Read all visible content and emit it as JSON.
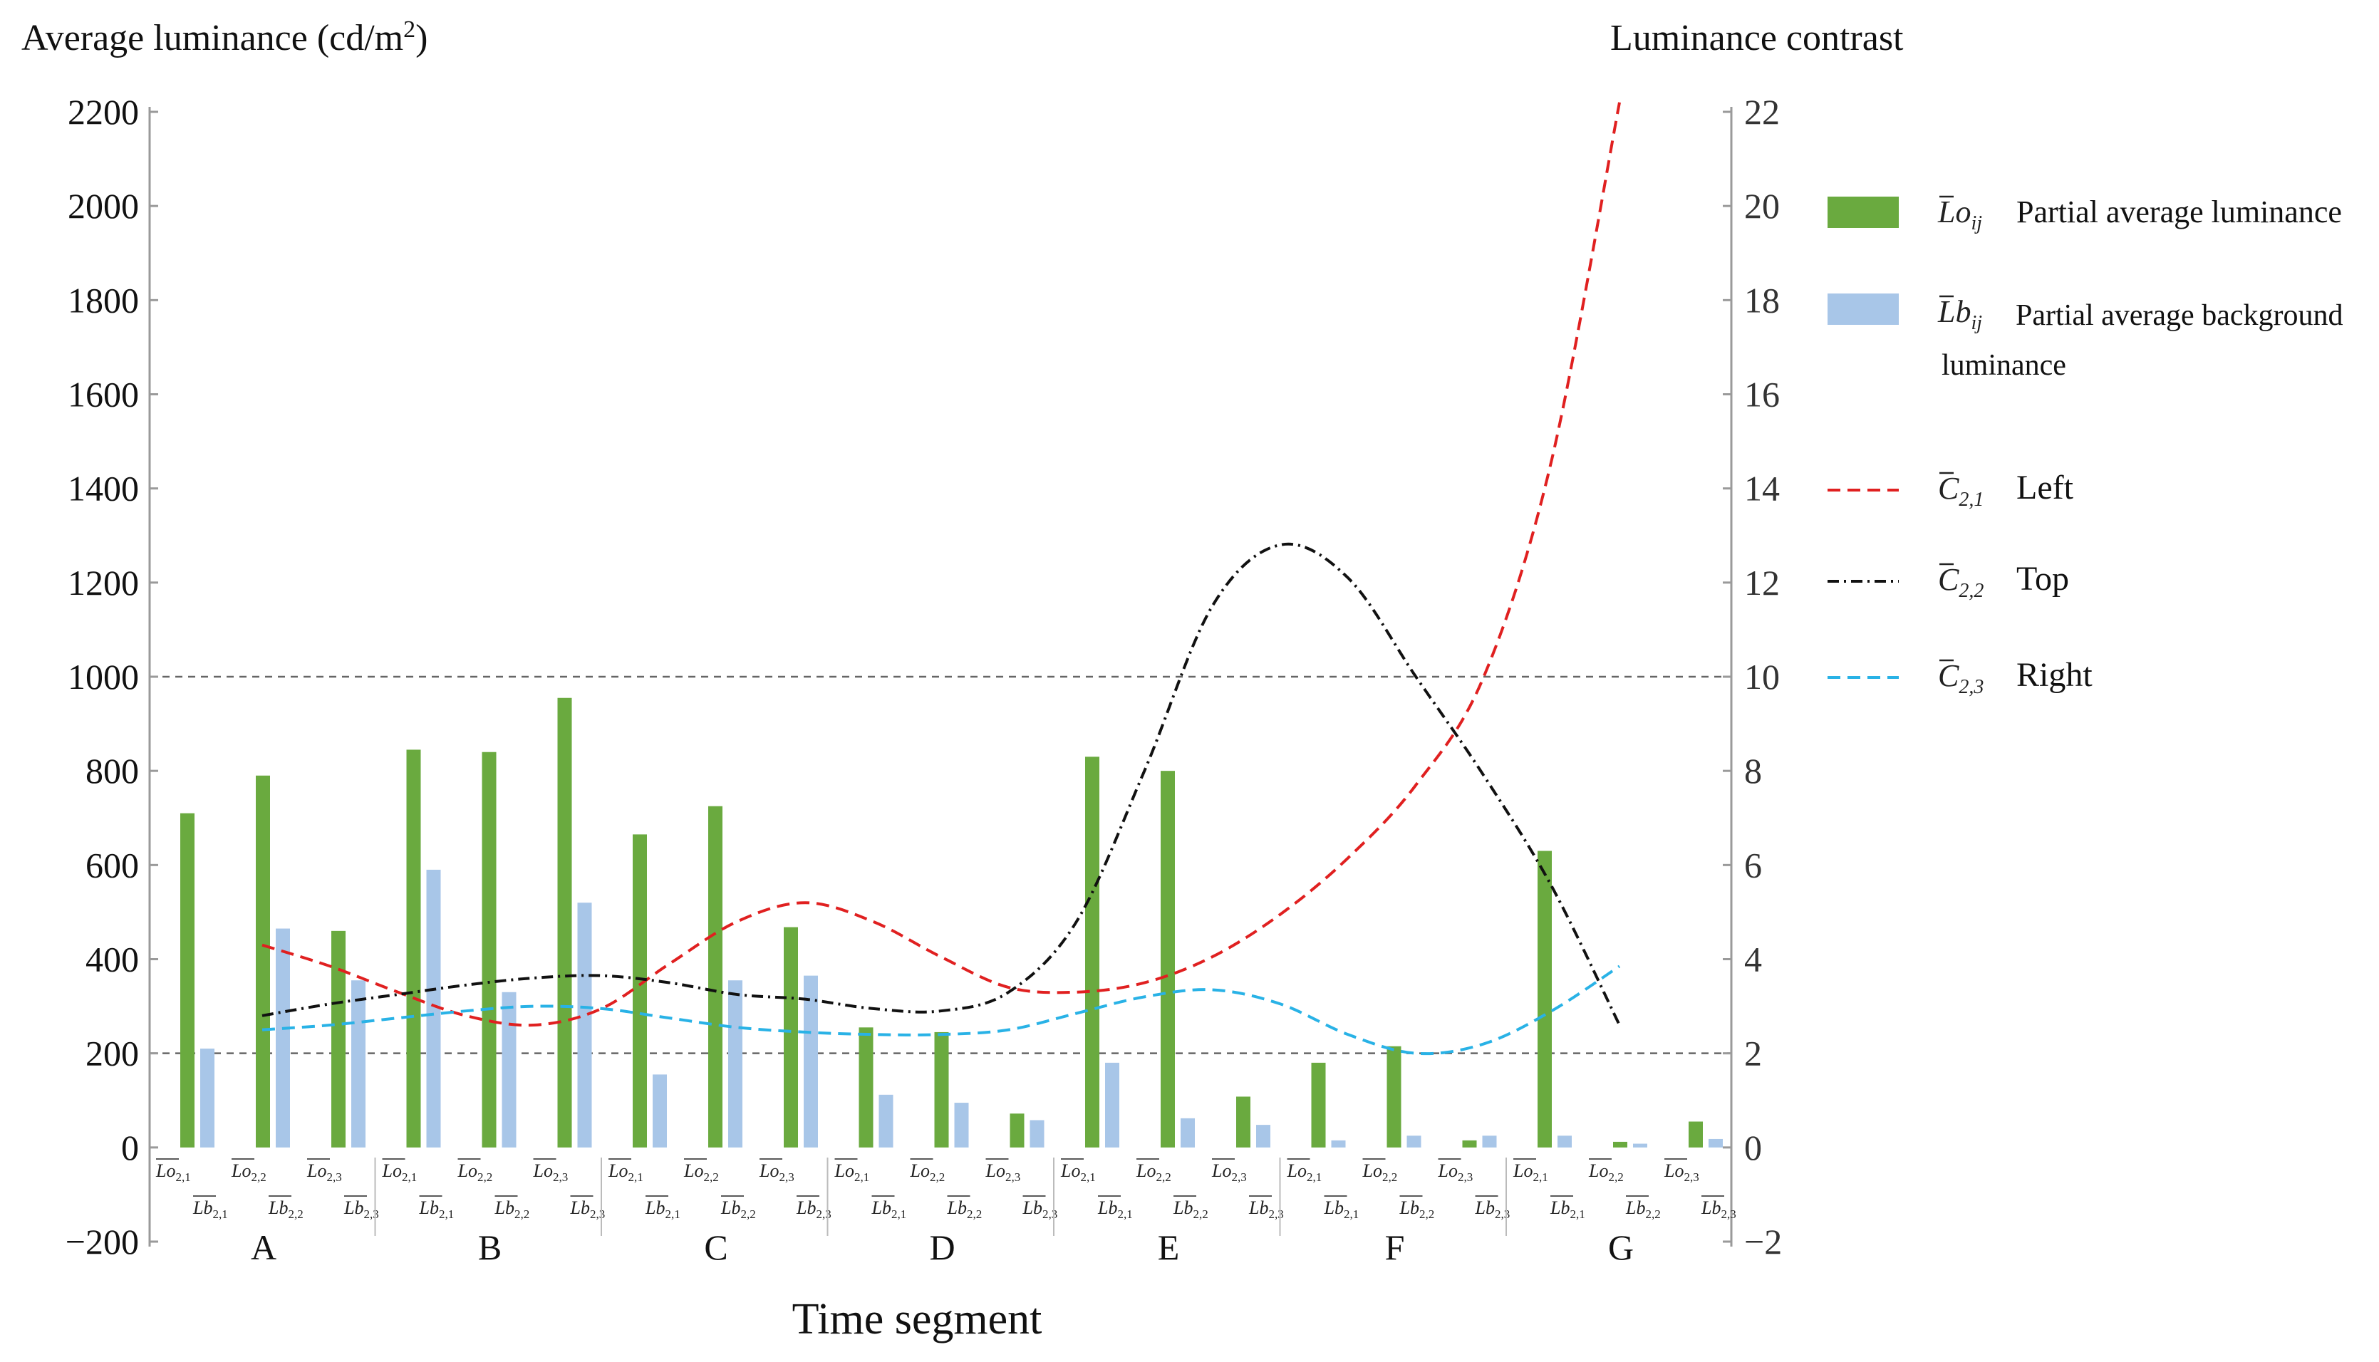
{
  "chart_data": {
    "type": "bar+line",
    "title": "",
    "left_axis_title_prefix": "Average luminance (cd/m",
    "left_axis_title_sup": "2",
    "left_axis_title_suffix": ")",
    "right_axis_title": "Luminance contrast",
    "xlabel": "Time segment",
    "left_ylim": [
      -200,
      2200
    ],
    "right_ylim": [
      -2,
      22
    ],
    "left_ticks": [
      "2200",
      "2000",
      "1800",
      "1600",
      "1400",
      "1200",
      "1000",
      "800",
      "600",
      "400",
      "200",
      "0",
      "−200"
    ],
    "left_tick_values": [
      2200,
      2000,
      1800,
      1600,
      1400,
      1200,
      1000,
      800,
      600,
      400,
      200,
      0,
      -200
    ],
    "right_ticks": [
      "22",
      "20",
      "18",
      "16",
      "14",
      "12",
      "10",
      "8",
      "6",
      "4",
      "2",
      "0",
      "−2"
    ],
    "right_tick_values": [
      22,
      20,
      18,
      16,
      14,
      12,
      10,
      8,
      6,
      4,
      2,
      0,
      -2
    ],
    "reference_lines_contrast": [
      10,
      2
    ],
    "segments": [
      "A",
      "B",
      "C",
      "D",
      "E",
      "F",
      "G"
    ],
    "pair_labels_top": [
      "Lo2,1",
      "Lo2,2",
      "Lo2,3"
    ],
    "pair_labels_bottom": [
      "Lb2,1",
      "Lb2,2",
      "Lb2,3"
    ],
    "label_main_top": "Lo",
    "label_main_bottom": "Lb",
    "label_subs": [
      "2,1",
      "2,2",
      "2,3"
    ],
    "bar_series": [
      {
        "name": "Partial average luminance",
        "symbol": "Lo",
        "symbol_sub": "ij",
        "color": "#6aaa3f",
        "values": [
          [
            710,
            790,
            460
          ],
          [
            845,
            840,
            955
          ],
          [
            665,
            725,
            468
          ],
          [
            255,
            245,
            72
          ],
          [
            830,
            800,
            108
          ],
          [
            180,
            215,
            15
          ],
          [
            630,
            12,
            55
          ]
        ]
      },
      {
        "name": "Partial average background luminance",
        "symbol": "Lb",
        "symbol_sub": "ij",
        "color": "#a8c6e8",
        "values": [
          [
            210,
            465,
            355
          ],
          [
            590,
            330,
            520
          ],
          [
            155,
            355,
            365
          ],
          [
            112,
            95,
            58
          ],
          [
            180,
            62,
            48
          ],
          [
            15,
            25,
            25
          ],
          [
            25,
            8,
            18
          ]
        ]
      }
    ],
    "line_series": [
      {
        "name": "Left",
        "symbol": "C",
        "symbol_sub": "2,1",
        "color": "#e02020",
        "dash": "dash",
        "x": [
          0,
          0.3,
          0.6,
          0.9,
          1.2,
          1.5,
          1.8,
          2.1,
          2.4,
          2.7,
          3.0,
          3.3,
          3.6,
          3.9,
          4.2,
          4.5,
          4.8,
          5.1,
          5.4,
          5.7,
          6.0
        ],
        "values": [
          4.3,
          3.85,
          3.3,
          2.8,
          2.6,
          2.95,
          3.9,
          4.8,
          5.2,
          4.8,
          4.05,
          3.4,
          3.3,
          3.5,
          4.05,
          4.95,
          6.15,
          7.7,
          10.0,
          14.6,
          22.2
        ]
      },
      {
        "name": "Top",
        "symbol": "C",
        "symbol_sub": "2,2",
        "color": "#111111",
        "dash": "dashdot",
        "x": [
          0,
          0.3,
          0.6,
          0.9,
          1.2,
          1.5,
          1.8,
          2.1,
          2.4,
          2.7,
          3.0,
          3.3,
          3.6,
          3.9,
          4.2,
          4.5,
          4.8,
          5.1,
          5.4,
          5.7,
          6.0
        ],
        "values": [
          2.8,
          3.05,
          3.25,
          3.45,
          3.6,
          3.65,
          3.5,
          3.25,
          3.15,
          2.95,
          2.9,
          3.3,
          4.8,
          8.0,
          11.5,
          12.8,
          12.1,
          10.0,
          7.9,
          5.55,
          2.6
        ]
      },
      {
        "name": "Right",
        "symbol": "C",
        "symbol_sub": "2,3",
        "color": "#29b2e6",
        "dash": "dash",
        "x": [
          0,
          0.3,
          0.6,
          0.9,
          1.2,
          1.5,
          1.8,
          2.1,
          2.4,
          2.7,
          3.0,
          3.3,
          3.6,
          3.9,
          4.2,
          4.5,
          4.8,
          5.1,
          5.4,
          5.7,
          6.0
        ],
        "values": [
          2.5,
          2.6,
          2.75,
          2.9,
          3.0,
          2.95,
          2.75,
          2.55,
          2.45,
          2.4,
          2.4,
          2.5,
          2.85,
          3.2,
          3.35,
          3.05,
          2.4,
          2.0,
          2.2,
          2.9,
          3.85
        ]
      }
    ]
  }
}
